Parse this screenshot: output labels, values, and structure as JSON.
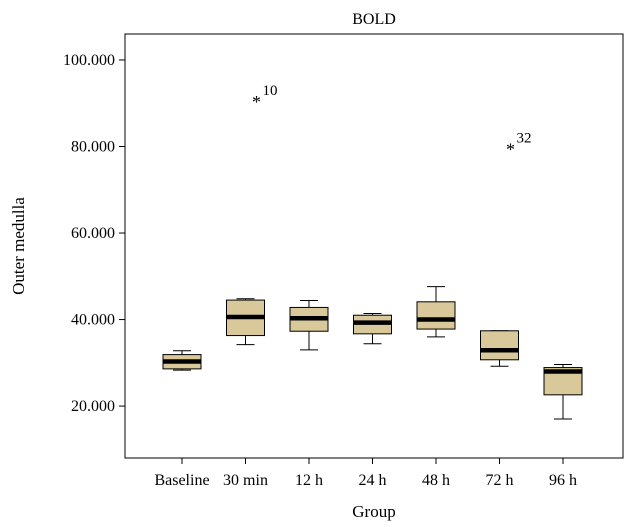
{
  "chart_data": {
    "type": "box",
    "title": "BOLD",
    "xlabel": "Group",
    "ylabel": "Outer medulla",
    "categories": [
      "Baseline",
      "30 min",
      "12 h",
      "24 h",
      "48 h",
      "72 h",
      "96 h"
    ],
    "y_ticks": [
      {
        "value": 20,
        "label": "20.000"
      },
      {
        "value": 40,
        "label": "40.000"
      },
      {
        "value": 60,
        "label": "60.000"
      },
      {
        "value": 80,
        "label": "80.000"
      },
      {
        "value": 100,
        "label": "100.000"
      }
    ],
    "ylim": [
      8,
      106
    ],
    "grid": false,
    "box_color": "#d8c89a",
    "boxes": [
      {
        "category": "Baseline",
        "min": 28.3,
        "q1": 28.6,
        "median": 30.3,
        "q3": 31.9,
        "max": 32.8
      },
      {
        "category": "30 min",
        "min": 34.2,
        "q1": 36.3,
        "median": 40.6,
        "q3": 44.5,
        "max": 44.8
      },
      {
        "category": "12 h",
        "min": 33.0,
        "q1": 37.3,
        "median": 40.3,
        "q3": 42.8,
        "max": 44.4
      },
      {
        "category": "24 h",
        "min": 34.4,
        "q1": 36.7,
        "median": 39.3,
        "q3": 41.0,
        "max": 41.4
      },
      {
        "category": "48 h",
        "min": 36.0,
        "q1": 37.8,
        "median": 40.0,
        "q3": 44.1,
        "max": 47.6
      },
      {
        "category": "72 h",
        "min": 29.2,
        "q1": 30.7,
        "median": 32.9,
        "q3": 37.4,
        "max": 37.4
      },
      {
        "category": "96 h",
        "min": 17.0,
        "q1": 22.6,
        "median": 28.0,
        "q3": 28.9,
        "max": 29.6
      }
    ],
    "outliers": [
      {
        "category": "30 min",
        "value": 91,
        "label": "10"
      },
      {
        "category": "72 h",
        "value": 80,
        "label": "32"
      }
    ]
  }
}
